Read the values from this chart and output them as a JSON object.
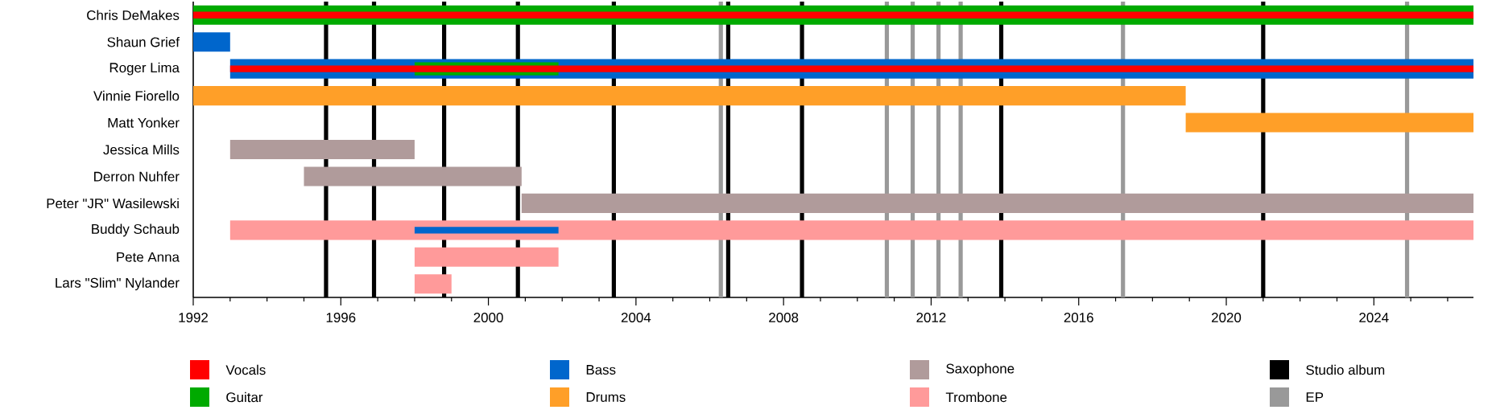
{
  "chart_data": {
    "type": "bar",
    "orientation": "horizontal",
    "legend": "bottom",
    "categories": [
      "Chris DeMakes",
      "Shaun Grief",
      "Roger Lima",
      "Vinnie Fiorello",
      "Matt Yonker",
      "Jessica Mills",
      "Derron Nuhfer",
      "Peter \"JR\" Wasilewski",
      "Buddy Schaub",
      "Pete Anna",
      "Lars \"Slim\" Nylander"
    ],
    "series": [
      {
        "name": "Vocals",
        "color": "#ff0000",
        "base": [
          1992,
          null,
          1993,
          null,
          null,
          null,
          null,
          null,
          null,
          null,
          null
        ],
        "values": [
          34.7,
          null,
          33.7,
          null,
          null,
          null,
          null,
          null,
          null,
          null,
          null
        ]
      },
      {
        "name": "Guitar",
        "color": "#00aa00",
        "base": [
          1992,
          null,
          1998,
          null,
          null,
          null,
          null,
          null,
          null,
          null,
          null
        ],
        "values": [
          34.7,
          null,
          3.9,
          null,
          null,
          null,
          null,
          null,
          null,
          null,
          null
        ]
      },
      {
        "name": "Bass",
        "color": "#0066cc",
        "base": [
          null,
          1992,
          1993,
          null,
          null,
          null,
          null,
          null,
          1998,
          null,
          null
        ],
        "values": [
          null,
          1.0,
          33.7,
          null,
          null,
          null,
          null,
          null,
          3.9,
          null,
          null
        ]
      },
      {
        "name": "Drums",
        "color": "#ff9f28",
        "base": [
          null,
          null,
          null,
          1992,
          2018.9,
          null,
          null,
          null,
          null,
          null,
          null
        ],
        "values": [
          null,
          null,
          null,
          26.9,
          7.8,
          null,
          null,
          null,
          null,
          null,
          null
        ]
      },
      {
        "name": "Saxophone",
        "color": "#b09b9b",
        "base": [
          null,
          null,
          null,
          null,
          null,
          1993,
          1995,
          2000.9,
          null,
          null,
          null
        ],
        "values": [
          null,
          null,
          null,
          null,
          null,
          5.0,
          5.9,
          25.8,
          null,
          null,
          null
        ]
      },
      {
        "name": "Trombone",
        "color": "#ff9a9a",
        "base": [
          null,
          null,
          null,
          null,
          null,
          null,
          null,
          null,
          1993,
          1998,
          1998
        ],
        "values": [
          null,
          null,
          null,
          null,
          null,
          null,
          null,
          null,
          33.7,
          3.9,
          1.0
        ]
      }
    ],
    "xlim": [
      1992,
      2026.7
    ],
    "xticks": [
      1992,
      {
        "value": 1993,
        "label": null
      },
      {
        "value": 1994,
        "label": null
      },
      {
        "value": 1995,
        "label": null
      },
      1996,
      {
        "value": 1997,
        "label": null
      },
      {
        "value": 1998,
        "label": null
      },
      {
        "value": 1999,
        "label": null
      },
      2000,
      {
        "value": 2001,
        "label": null
      },
      {
        "value": 2002,
        "label": null
      },
      {
        "value": 2003,
        "label": null
      },
      2004,
      {
        "value": 2005,
        "label": null
      },
      {
        "value": 2006,
        "label": null
      },
      {
        "value": 2007,
        "label": null
      },
      2008,
      {
        "value": 2009,
        "label": null
      },
      {
        "value": 2010,
        "label": null
      },
      {
        "value": 2011,
        "label": null
      },
      2012,
      {
        "value": 2013,
        "label": null
      },
      {
        "value": 2014,
        "label": null
      },
      {
        "value": 2015,
        "label": null
      },
      2016,
      {
        "value": 2017,
        "label": null
      },
      {
        "value": 2018,
        "label": null
      },
      {
        "value": 2019,
        "label": null
      },
      2020,
      {
        "value": 2021,
        "label": null
      },
      {
        "value": 2022,
        "label": null
      },
      {
        "value": 2023,
        "label": null
      },
      2024,
      {
        "value": 2025,
        "label": null
      },
      {
        "value": 2026,
        "label": null
      }
    ],
    "ref_lines": [
      {
        "axis": "x",
        "value": 1995.6,
        "label": "Studio album",
        "color": "#000000"
      },
      {
        "axis": "x",
        "value": 1996.9,
        "color": "#000000"
      },
      {
        "axis": "x",
        "value": 1998.8,
        "color": "#000000"
      },
      {
        "axis": "x",
        "value": 2000.8,
        "color": "#000000"
      },
      {
        "axis": "x",
        "value": 2003.4,
        "color": "#000000"
      },
      {
        "axis": "x",
        "value": 2006.5,
        "color": "#000000"
      },
      {
        "axis": "x",
        "value": 2008.5,
        "color": "#000000"
      },
      {
        "axis": "x",
        "value": 2013.9,
        "color": "#000000"
      },
      {
        "axis": "x",
        "value": 2021.0,
        "color": "#000000"
      },
      {
        "axis": "x",
        "value": 2006.3,
        "label": "EP",
        "color": "#999999"
      },
      {
        "axis": "x",
        "value": 2010.8,
        "color": "#999999"
      },
      {
        "axis": "x",
        "value": 2011.5,
        "color": "#999999"
      },
      {
        "axis": "x",
        "value": 2012.2,
        "color": "#999999"
      },
      {
        "axis": "x",
        "value": 2012.8,
        "color": "#999999"
      },
      {
        "axis": "x",
        "value": 2017.2,
        "color": "#999999"
      },
      {
        "axis": "x",
        "value": 2024.9,
        "color": "#999999"
      }
    ]
  }
}
